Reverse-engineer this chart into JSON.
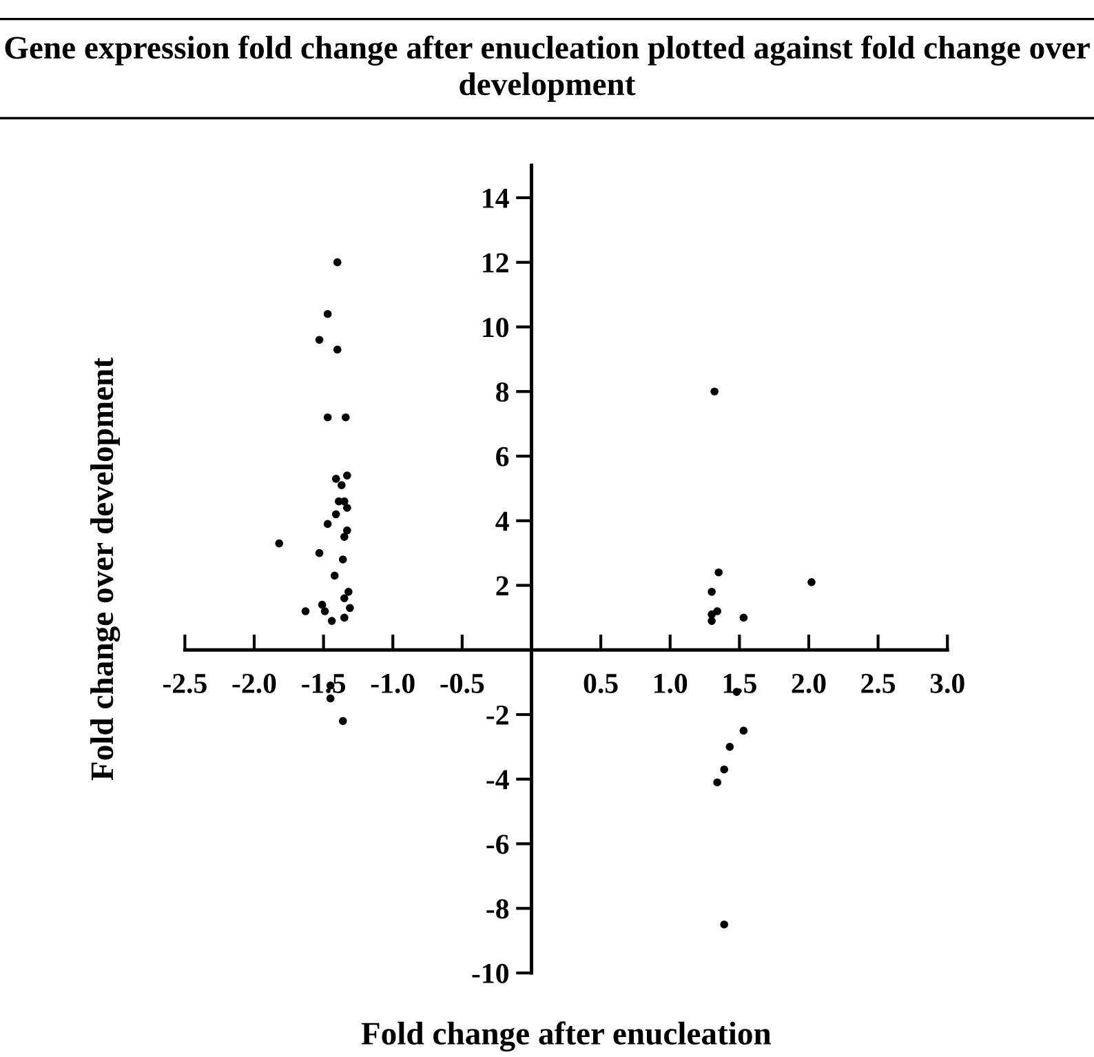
{
  "chart_data": {
    "type": "scatter",
    "title": "Gene expression fold change after enucleation plotted against fold change over development",
    "xlabel": "Fold change after enucleation",
    "ylabel": "Fold change over development",
    "x": [
      -1.4,
      -1.47,
      -1.53,
      -1.4,
      -1.47,
      -1.34,
      -1.41,
      -1.37,
      -1.33,
      -1.39,
      -1.35,
      -1.33,
      -1.41,
      -1.47,
      -1.33,
      -1.35,
      -1.82,
      -1.53,
      -1.36,
      -1.42,
      -1.32,
      -1.35,
      -1.51,
      -1.31,
      -1.63,
      -1.49,
      -1.35,
      -1.44,
      -1.36,
      -1.45,
      -1.45,
      1.32,
      1.35,
      2.02,
      1.3,
      1.34,
      1.3,
      1.53,
      1.3,
      1.48,
      1.53,
      1.43,
      1.39,
      1.34,
      1.39
    ],
    "values": [
      12.0,
      10.4,
      9.6,
      9.3,
      7.2,
      7.2,
      5.3,
      5.1,
      5.4,
      4.6,
      4.6,
      4.4,
      4.2,
      3.9,
      3.7,
      3.5,
      3.3,
      3.0,
      2.8,
      2.3,
      1.8,
      1.6,
      1.4,
      1.3,
      1.2,
      1.2,
      1.0,
      0.9,
      -2.2,
      -1.1,
      -1.5,
      8.0,
      2.4,
      2.1,
      1.8,
      1.2,
      1.1,
      1.0,
      0.9,
      -1.3,
      -2.5,
      -3.0,
      -3.7,
      -4.1,
      -8.5
    ],
    "color": "#000000",
    "marker": "circle",
    "grid": false,
    "xlim": [
      -2.5,
      3.0
    ],
    "ylim": [
      -10,
      15
    ],
    "xticks": [
      {
        "value": -2.5,
        "label": "-2.5"
      },
      {
        "value": -2.0,
        "label": "-2.0"
      },
      {
        "value": -1.5,
        "label": "-1.5"
      },
      {
        "value": -1.0,
        "label": "-1.0"
      },
      {
        "value": -0.5,
        "label": "-0.5"
      },
      {
        "value": 0.5,
        "label": "0.5"
      },
      {
        "value": 1.0,
        "label": "1.0"
      },
      {
        "value": 1.5,
        "label": "1.5"
      },
      {
        "value": 2.0,
        "label": "2.0"
      },
      {
        "value": 2.5,
        "label": "2.5"
      },
      {
        "value": 3.0,
        "label": "3.0"
      }
    ],
    "yticks": [
      -10,
      -8,
      -6,
      -4,
      -2,
      2,
      4,
      6,
      8,
      10,
      12,
      14
    ]
  }
}
